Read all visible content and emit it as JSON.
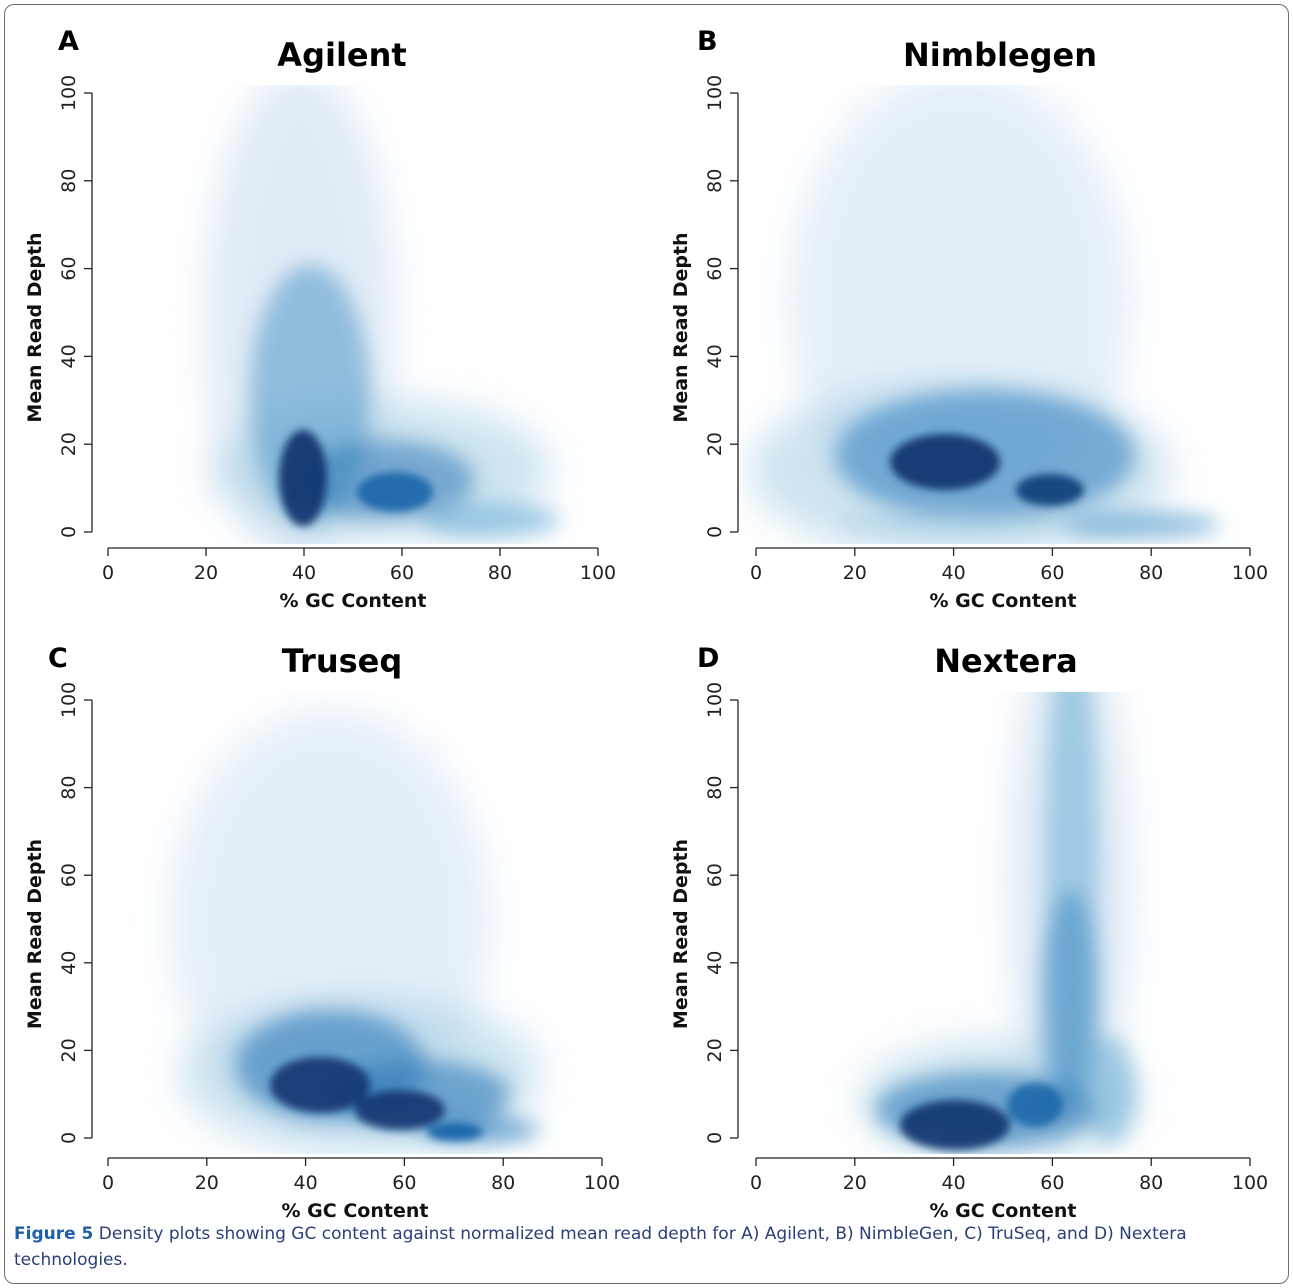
{
  "caption": {
    "label": "Figure 5",
    "text": "Density plots showing GC content against normalized mean read depth for A) Agilent, B) NimbleGen, C) TruSeq, and D) Nextera technologies."
  },
  "colors": {
    "density_max": "#08306b",
    "density_mid": "#2f78b7",
    "density_low": "#c6dbef",
    "background": "#ffffff"
  },
  "chart_data": [
    {
      "type": "heatmap",
      "panel_letter": "A",
      "title": "Agilent",
      "xlabel": "% GC Content",
      "ylabel": "Mean Read Depth",
      "xlim": [
        0,
        100
      ],
      "ylim": [
        0,
        100
      ],
      "xticks": [
        0,
        20,
        40,
        60,
        80,
        100
      ],
      "yticks": [
        0,
        20,
        40,
        60,
        80,
        100
      ],
      "grid": false,
      "density_peaks": [
        {
          "gc": 39,
          "depth": 11,
          "intensity": 1.0
        },
        {
          "gc": 58,
          "depth": 7,
          "intensity": 0.65
        },
        {
          "gc": 48,
          "depth": 25,
          "intensity": 0.45
        },
        {
          "gc": 42,
          "depth": 55,
          "intensity": 0.22
        },
        {
          "gc": 75,
          "depth": 2,
          "intensity": 0.35
        }
      ]
    },
    {
      "type": "heatmap",
      "panel_letter": "B",
      "title": "Nimblegen",
      "xlabel": "% GC Content",
      "ylabel": "Mean Read Depth",
      "xlim": [
        0,
        100
      ],
      "ylim": [
        0,
        100
      ],
      "xticks": [
        0,
        20,
        40,
        60,
        80,
        100
      ],
      "yticks": [
        0,
        20,
        40,
        60,
        80,
        100
      ],
      "grid": false,
      "density_peaks": [
        {
          "gc": 37,
          "depth": 15,
          "intensity": 1.0
        },
        {
          "gc": 59,
          "depth": 8,
          "intensity": 0.85
        },
        {
          "gc": 45,
          "depth": 25,
          "intensity": 0.5
        },
        {
          "gc": 80,
          "depth": 1,
          "intensity": 0.6
        },
        {
          "gc": 40,
          "depth": 2,
          "intensity": 0.3
        },
        {
          "gc": 45,
          "depth": 55,
          "intensity": 0.15
        }
      ]
    },
    {
      "type": "heatmap",
      "panel_letter": "C",
      "title": "Truseq",
      "xlabel": "% GC Content",
      "ylabel": "Mean Read Depth",
      "xlim": [
        0,
        100
      ],
      "ylim": [
        0,
        100
      ],
      "xticks": [
        0,
        20,
        40,
        60,
        80,
        100
      ],
      "yticks": [
        0,
        20,
        40,
        60,
        80,
        100
      ],
      "grid": false,
      "density_peaks": [
        {
          "gc": 42,
          "depth": 17,
          "intensity": 1.0
        },
        {
          "gc": 58,
          "depth": 10,
          "intensity": 0.95
        },
        {
          "gc": 72,
          "depth": 2,
          "intensity": 0.6
        },
        {
          "gc": 45,
          "depth": 30,
          "intensity": 0.4
        },
        {
          "gc": 48,
          "depth": 60,
          "intensity": 0.12
        }
      ]
    },
    {
      "type": "heatmap",
      "panel_letter": "D",
      "title": "Nextera",
      "xlabel": "% GC Content",
      "ylabel": "Mean Read Depth",
      "xlim": [
        0,
        100
      ],
      "ylim": [
        0,
        100
      ],
      "xticks": [
        0,
        20,
        40,
        60,
        80,
        100
      ],
      "yticks": [
        0,
        20,
        40,
        60,
        80,
        100
      ],
      "grid": false,
      "density_peaks": [
        {
          "gc": 42,
          "depth": 5,
          "intensity": 1.0
        },
        {
          "gc": 55,
          "depth": 10,
          "intensity": 0.6
        },
        {
          "gc": 62,
          "depth": 35,
          "intensity": 0.5
        },
        {
          "gc": 64,
          "depth": 70,
          "intensity": 0.35
        },
        {
          "gc": 70,
          "depth": 10,
          "intensity": 0.4
        }
      ]
    }
  ]
}
